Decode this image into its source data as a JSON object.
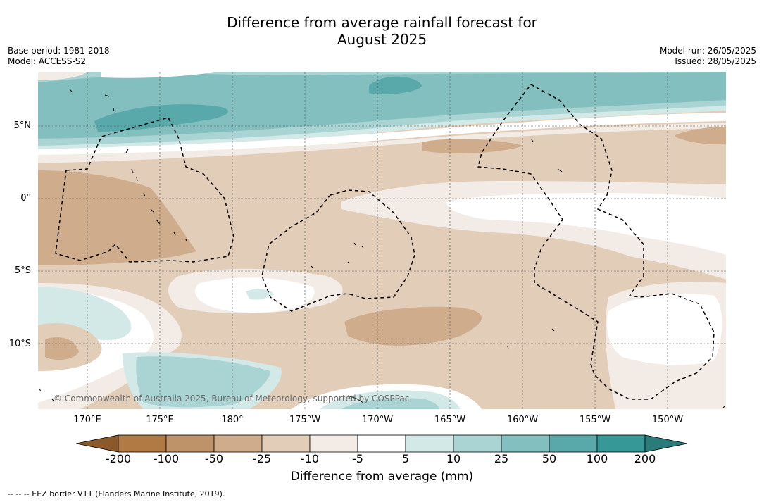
{
  "title_line1": "Difference from average rainfall forecast for",
  "title_line2": "August 2025",
  "base_period": "Base period: 1981-2018",
  "model": "Model: ACCESS-S2",
  "model_run": "Model run: 26/05/2025",
  "issued": "Issued: 28/05/2025",
  "lat_labels": [
    "5°N",
    "0°",
    "5°S",
    "10°S"
  ],
  "lon_labels": [
    "170°E",
    "175°E",
    "180°",
    "175°W",
    "170°W",
    "165°W",
    "160°W",
    "155°W",
    "150°W"
  ],
  "copyright": "© Commonwealth of Australia 2025, Bureau of Meteorology, supported by COSPPac",
  "colorbar": {
    "ticks": [
      "-200",
      "-100",
      "-50",
      "-25",
      "-10",
      "-5",
      "5",
      "10",
      "25",
      "50",
      "100",
      "200"
    ],
    "colors": [
      "#8c5a2a",
      "#b07a45",
      "#bf936a",
      "#cfad8c",
      "#e2cdb9",
      "#f3ece6",
      "#ffffff",
      "#d3e9e8",
      "#aad3d3",
      "#84bfbf",
      "#5aa9aa",
      "#369998",
      "#2a7b7a"
    ],
    "title": "Difference from average (mm)"
  },
  "footer": "--  --  -- EEZ border V11 (Flanders Marine Institute, 2019)."
}
